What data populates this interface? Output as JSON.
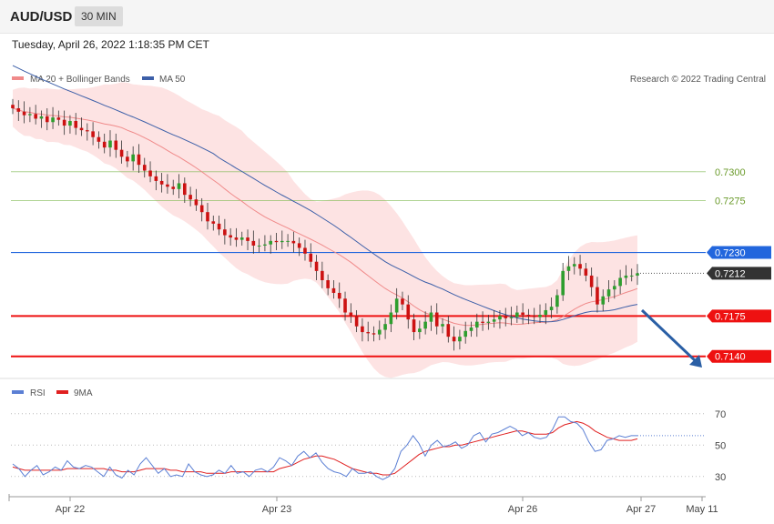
{
  "header": {
    "symbol": "AUD/USD",
    "timeframe": "30 MIN"
  },
  "timestamp": "Tuesday, April 26, 2022 1:18:35 PM CET",
  "legend": {
    "ma20": "MA 20 + Bollinger Bands",
    "ma50": "MA 50"
  },
  "copyright": "Research © 2022 Trading Central",
  "colors": {
    "ma20": "#f08a8a",
    "ma50": "#3c5fa8",
    "band": "#fde3e3",
    "rsi": "#5b7fd4",
    "rsi_ma": "#e02020",
    "support": "#ee1111",
    "resistance": "#2266dd",
    "target": "#7ab84a",
    "arrow": "#2a5fa5"
  },
  "chart_data": [
    {
      "type": "candlestick",
      "title": "AUD/USD 30 MIN",
      "x_labels": [
        "Apr 22",
        "Apr 23",
        "Apr 26",
        "Apr 27",
        "May 11"
      ],
      "levels": [
        {
          "value": 0.73,
          "label": "0.7300",
          "kind": "target"
        },
        {
          "value": 0.7275,
          "label": "0.7275",
          "kind": "target"
        },
        {
          "value": 0.723,
          "label": "0.7230",
          "kind": "resistance"
        },
        {
          "value": 0.7212,
          "label": "0.7212",
          "kind": "last"
        },
        {
          "value": 0.7175,
          "label": "0.7175",
          "kind": "support"
        },
        {
          "value": 0.714,
          "label": "0.7140",
          "kind": "support"
        }
      ],
      "close": [
        0.7355,
        0.7352,
        0.7349,
        0.735,
        0.7346,
        0.7348,
        0.7343,
        0.7347,
        0.7345,
        0.734,
        0.7344,
        0.7338,
        0.7336,
        0.7335,
        0.733,
        0.7326,
        0.7321,
        0.7327,
        0.7319,
        0.7313,
        0.7309,
        0.7315,
        0.7306,
        0.7301,
        0.7296,
        0.7292,
        0.7289,
        0.7287,
        0.7285,
        0.729,
        0.728,
        0.7276,
        0.7271,
        0.7265,
        0.7257,
        0.7255,
        0.725,
        0.7245,
        0.7243,
        0.7241,
        0.7243,
        0.724,
        0.7236,
        0.7236,
        0.7237,
        0.724,
        0.7239,
        0.724,
        0.724,
        0.7238,
        0.7234,
        0.7229,
        0.7222,
        0.7214,
        0.7206,
        0.7199,
        0.7195,
        0.719,
        0.7178,
        0.7175,
        0.7166,
        0.7161,
        0.716,
        0.7159,
        0.7163,
        0.7168,
        0.7178,
        0.719,
        0.7185,
        0.7172,
        0.7161,
        0.7164,
        0.717,
        0.7178,
        0.7166,
        0.7168,
        0.7157,
        0.7153,
        0.7157,
        0.7162,
        0.7165,
        0.717,
        0.7169,
        0.717,
        0.7172,
        0.7175,
        0.7173,
        0.7174,
        0.7178,
        0.7176,
        0.7175,
        0.7174,
        0.7176,
        0.718,
        0.7183,
        0.7193,
        0.7214,
        0.7218,
        0.722,
        0.7216,
        0.721,
        0.72,
        0.7185,
        0.7192,
        0.7198,
        0.7201,
        0.7208,
        0.721,
        0.721,
        0.7212
      ],
      "ma20_description": "MA 20 with Bollinger Bands",
      "ma50_description": "MA 50",
      "ylim": [
        0.7124,
        0.737
      ]
    },
    {
      "type": "line",
      "title": "RSI",
      "series": [
        {
          "name": "RSI",
          "values": [
            38,
            35,
            30,
            34,
            37,
            31,
            33,
            36,
            34,
            40,
            36,
            35,
            37,
            36,
            33,
            30,
            36,
            31,
            29,
            34,
            31,
            38,
            42,
            37,
            32,
            35,
            30,
            31,
            30,
            38,
            33,
            31,
            30,
            31,
            34,
            32,
            37,
            32,
            33,
            30,
            34,
            35,
            33,
            36,
            42,
            40,
            37,
            43,
            46,
            42,
            45,
            39,
            35,
            33,
            32,
            30,
            35,
            32,
            32,
            33,
            30,
            28,
            30,
            35,
            46,
            50,
            56,
            51,
            43,
            50,
            53,
            49,
            50,
            52,
            48,
            50,
            56,
            58,
            52,
            57,
            58,
            60,
            62,
            60,
            56,
            58,
            55,
            54,
            55,
            60,
            68,
            68,
            65,
            64,
            60,
            52,
            46,
            47,
            53,
            54,
            56,
            55,
            56,
            56
          ]
        },
        {
          "name": "9MA",
          "values": [
            36,
            35,
            34,
            34,
            34,
            34,
            34,
            34,
            34,
            35,
            35,
            35,
            35,
            35,
            35,
            35,
            34,
            34,
            33,
            33,
            33,
            34,
            35,
            35,
            35,
            35,
            34,
            34,
            33,
            33,
            33,
            33,
            32,
            32,
            32,
            32,
            33,
            33,
            33,
            33,
            33,
            33,
            33,
            33,
            35,
            36,
            37,
            39,
            41,
            42,
            43,
            43,
            42,
            41,
            39,
            37,
            35,
            34,
            33,
            32,
            32,
            31,
            31,
            32,
            35,
            38,
            41,
            44,
            46,
            47,
            48,
            49,
            49,
            50,
            50,
            51,
            52,
            53,
            54,
            55,
            56,
            57,
            58,
            59,
            59,
            58,
            57,
            57,
            57,
            58,
            61,
            63,
            64,
            65,
            64,
            62,
            59,
            57,
            55,
            54,
            53,
            53,
            53,
            54
          ]
        }
      ],
      "ylim": [
        20,
        78
      ],
      "y_ticks": [
        "70",
        "50",
        "30"
      ],
      "x_labels": [
        "Apr 22",
        "Apr 23",
        "Apr 26",
        "Apr 27",
        "May 11"
      ]
    }
  ]
}
